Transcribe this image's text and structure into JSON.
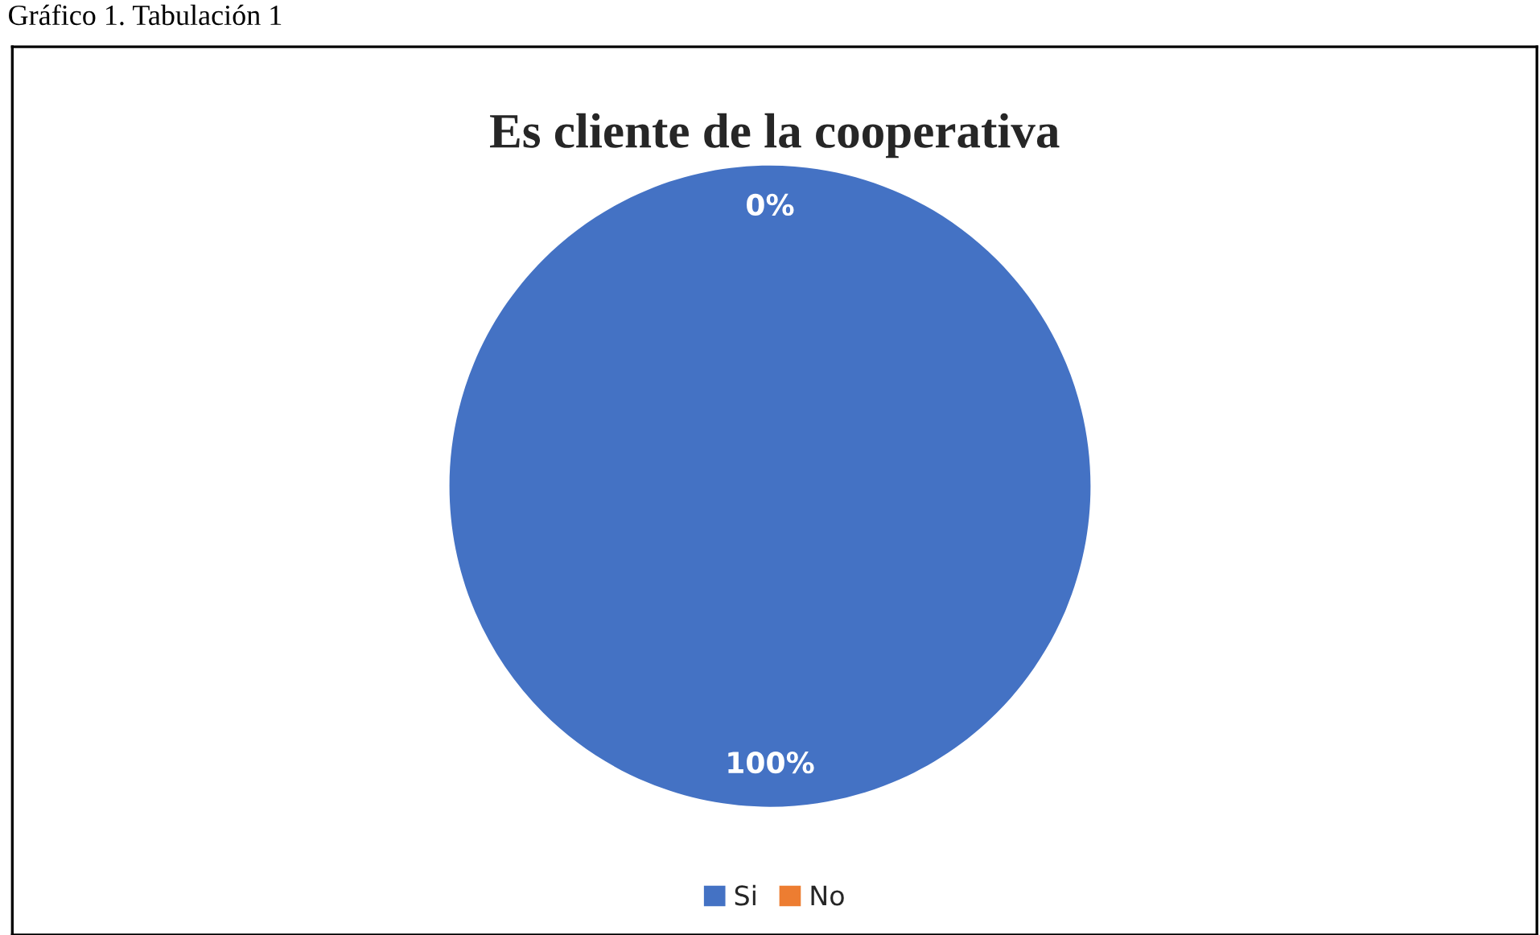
{
  "chart_data": {
    "type": "pie",
    "title": "Es cliente de la cooperativa",
    "annotations": [
      "Gráfico 1. Tabulación 1"
    ],
    "categories": [
      "Si",
      "No"
    ],
    "values": [
      100,
      0
    ],
    "colors": [
      "#4472c4",
      "#ed7d31"
    ],
    "value_labels": [
      "100%",
      "0%"
    ],
    "legend": "bottom"
  }
}
